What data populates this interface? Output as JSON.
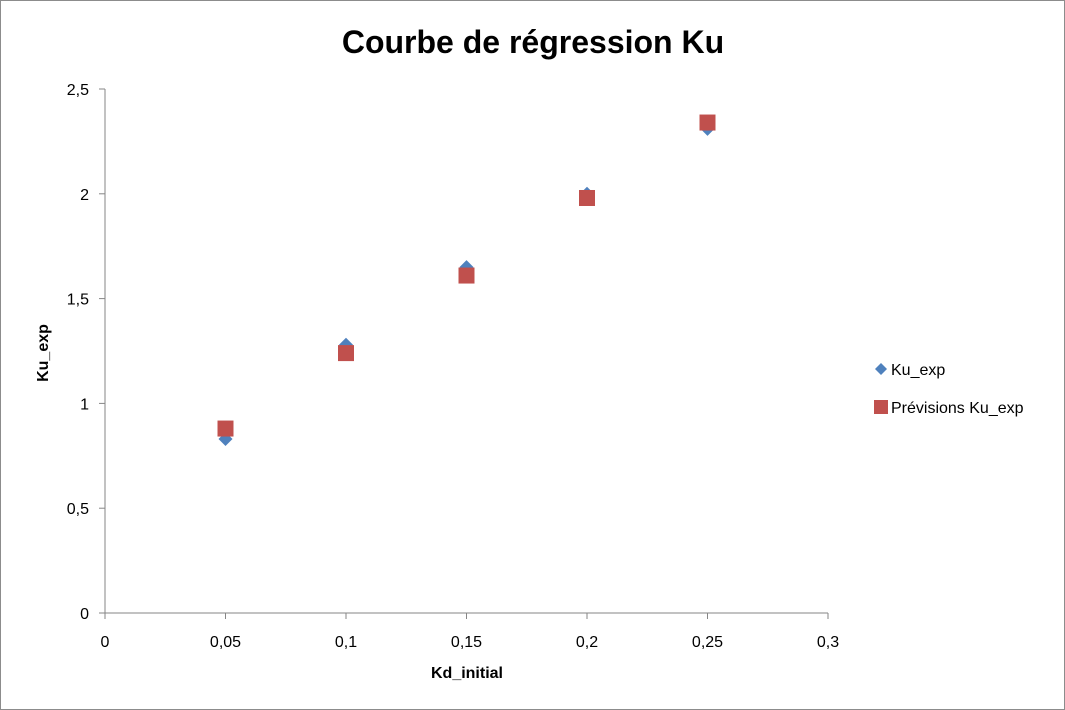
{
  "chart_data": {
    "type": "scatter",
    "title": "Courbe de régression Ku",
    "xlabel": "Kd_initial",
    "ylabel": "Ku_exp",
    "xlim": [
      0,
      0.3
    ],
    "ylim": [
      0,
      2.5
    ],
    "x_ticks": [
      "0",
      "0,05",
      "0,1",
      "0,15",
      "0,2",
      "0,25",
      "0,3"
    ],
    "y_ticks": [
      "0",
      "0,5",
      "1",
      "1,5",
      "2",
      "2,5"
    ],
    "grid": false,
    "legend_position": "right",
    "series": [
      {
        "name": "Ku_exp",
        "marker": "diamond",
        "color": "#4f81bd",
        "x": [
          0.05,
          0.1,
          0.15,
          0.2,
          0.25
        ],
        "y": [
          0.83,
          1.28,
          1.65,
          2.0,
          2.31
        ]
      },
      {
        "name": "Prévisions Ku_exp",
        "marker": "square",
        "color": "#c0504d",
        "x": [
          0.05,
          0.1,
          0.15,
          0.2,
          0.25
        ],
        "y": [
          0.88,
          1.24,
          1.61,
          1.98,
          2.34
        ]
      }
    ]
  }
}
